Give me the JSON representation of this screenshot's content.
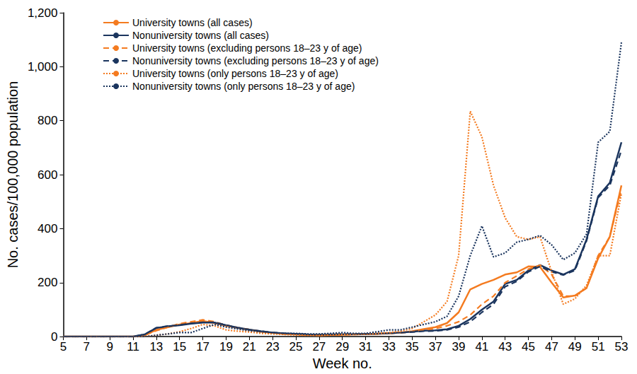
{
  "chart_data": {
    "type": "line",
    "x_label": "Week no.",
    "y_label": "No. cases/100,000 population",
    "x": [
      5,
      6,
      7,
      8,
      9,
      10,
      11,
      12,
      13,
      14,
      15,
      16,
      17,
      18,
      19,
      20,
      21,
      22,
      23,
      24,
      25,
      26,
      27,
      28,
      29,
      30,
      31,
      32,
      33,
      34,
      35,
      36,
      37,
      38,
      39,
      40,
      41,
      42,
      43,
      44,
      45,
      46,
      47,
      48,
      49,
      50,
      51,
      52,
      53
    ],
    "xlim": [
      5,
      53
    ],
    "xticks": [
      5,
      7,
      9,
      11,
      13,
      15,
      17,
      19,
      21,
      23,
      25,
      27,
      29,
      31,
      33,
      35,
      37,
      39,
      41,
      43,
      45,
      47,
      49,
      51,
      53
    ],
    "ylim": [
      0,
      1200
    ],
    "yticks": [
      0,
      200,
      400,
      600,
      800,
      {
        "value": 1000,
        "label": "1,000"
      },
      {
        "value": 1200,
        "label": "1,200"
      }
    ],
    "grid": false,
    "legend": "upper left",
    "series": [
      {
        "name": "University towns (all cases)",
        "color": "#f47b20",
        "line_style": "solid",
        "values": [
          0,
          0,
          0,
          0,
          0,
          0,
          0,
          5,
          25,
          35,
          45,
          50,
          58,
          50,
          40,
          32,
          25,
          18,
          14,
          10,
          8,
          6,
          5,
          6,
          7,
          8,
          9,
          10,
          12,
          15,
          20,
          28,
          35,
          50,
          90,
          175,
          195,
          210,
          230,
          238,
          260,
          258,
          200,
          145,
          152,
          180,
          290,
          370,
          560
        ]
      },
      {
        "name": "Nonuniversity towns (all cases)",
        "color": "#1b355e",
        "line_style": "solid",
        "values": [
          0,
          0,
          0,
          0,
          0,
          0,
          0,
          8,
          32,
          38,
          42,
          48,
          52,
          52,
          42,
          33,
          26,
          20,
          15,
          12,
          10,
          8,
          7,
          8,
          9,
          9,
          10,
          11,
          13,
          15,
          18,
          22,
          23,
          27,
          40,
          65,
          100,
          130,
          195,
          210,
          245,
          265,
          245,
          230,
          250,
          360,
          520,
          570,
          720
        ]
      },
      {
        "name": "University towns (excluding persons 18–23 y of age)",
        "color": "#f47b20",
        "line_style": "dashed",
        "values": [
          0,
          0,
          0,
          0,
          0,
          0,
          0,
          5,
          22,
          35,
          48,
          55,
          62,
          55,
          42,
          33,
          26,
          19,
          14,
          10,
          8,
          6,
          5,
          6,
          7,
          8,
          9,
          10,
          12,
          14,
          18,
          25,
          30,
          40,
          55,
          80,
          120,
          150,
          200,
          225,
          250,
          265,
          230,
          150,
          150,
          180,
          300,
          370,
          545
        ]
      },
      {
        "name": "Nonuniversity towns (excluding persons 18–23 y of age)",
        "color": "#1b355e",
        "line_style": "dashed",
        "values": [
          0,
          0,
          0,
          0,
          0,
          0,
          0,
          8,
          33,
          39,
          43,
          49,
          53,
          53,
          43,
          33,
          26,
          20,
          15,
          12,
          10,
          8,
          7,
          8,
          9,
          9,
          10,
          11,
          12,
          14,
          17,
          20,
          21,
          25,
          35,
          55,
          90,
          120,
          185,
          205,
          240,
          260,
          240,
          228,
          245,
          355,
          515,
          560,
          690
        ]
      },
      {
        "name": "University towns (only persons 18–23 y of age)",
        "color": "#f47b20",
        "line_style": "dotted",
        "values": [
          0,
          0,
          0,
          0,
          0,
          0,
          0,
          0,
          5,
          10,
          18,
          30,
          45,
          40,
          25,
          20,
          17,
          12,
          10,
          8,
          6,
          5,
          5,
          6,
          8,
          9,
          10,
          12,
          15,
          20,
          30,
          55,
          80,
          130,
          300,
          835,
          740,
          560,
          440,
          370,
          360,
          370,
          240,
          120,
          140,
          190,
          300,
          300,
          530
        ]
      },
      {
        "name": "Nonuniversity towns (only persons 18–23 y of age)",
        "color": "#1b355e",
        "line_style": "dotted",
        "values": [
          0,
          0,
          0,
          0,
          0,
          0,
          0,
          0,
          5,
          10,
          15,
          15,
          30,
          45,
          35,
          28,
          22,
          18,
          15,
          12,
          12,
          10,
          10,
          12,
          15,
          12,
          12,
          18,
          25,
          25,
          35,
          45,
          55,
          75,
          150,
          300,
          410,
          295,
          310,
          350,
          360,
          375,
          340,
          285,
          310,
          380,
          720,
          760,
          1090
        ]
      }
    ]
  }
}
